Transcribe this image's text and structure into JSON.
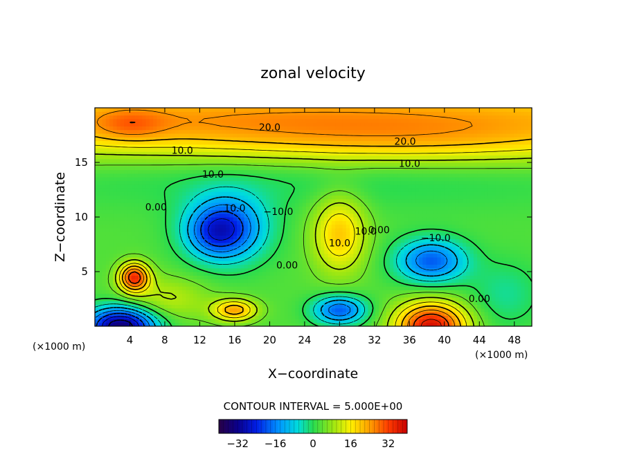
{
  "chart_data": {
    "type": "heatmap",
    "title": "zonal velocity",
    "xlabel": "X−coordinate",
    "ylabel": "Z−coordinate",
    "x_unit": "(×1000 m)",
    "y_unit": "(×1000 m)",
    "xlim": [
      0,
      50
    ],
    "ylim": [
      0,
      20
    ],
    "x_ticks": [
      4,
      8,
      12,
      16,
      20,
      24,
      28,
      32,
      36,
      40,
      44,
      48
    ],
    "y_ticks": [
      5,
      10,
      15
    ],
    "contour_interval_text": "CONTOUR INTERVAL = 5.000E+00",
    "colorbar": {
      "min": -40,
      "max": 40,
      "ticks": [
        -32,
        -16,
        0,
        16,
        32
      ]
    },
    "contour_labels": [
      "20.0",
      "20.0",
      "10.0",
      "10.0",
      "10.0",
      "10.0",
      "10.0",
      "10.0",
      "−10.0",
      "−10.0",
      "0.00",
      "0.00",
      "0.00",
      "0.00"
    ],
    "features": [
      {
        "x": 25,
        "z": 18.8,
        "value": 23,
        "sx": 60,
        "sz": 3.5
      },
      {
        "x": 4,
        "z": 18.5,
        "value": 7,
        "sx": 4,
        "sz": 1.5
      },
      {
        "x": 36,
        "z": 16.5,
        "value": 5,
        "sx": 20,
        "sz": 2
      },
      {
        "x": 25,
        "z": 14,
        "value": -5,
        "sx": 40,
        "sz": 3
      },
      {
        "x": 15,
        "z": 9,
        "value": -25,
        "sx": 4.5,
        "sz": 3
      },
      {
        "x": 13.5,
        "z": 8.5,
        "value": -8,
        "sx": 3,
        "sz": 2
      },
      {
        "x": 38.5,
        "z": 6,
        "value": -22,
        "sx": 4,
        "sz": 2
      },
      {
        "x": 28,
        "z": 8.5,
        "value": 17,
        "sx": 3,
        "sz": 3.5
      },
      {
        "x": 4.5,
        "z": 4.5,
        "value": 30,
        "sx": 1.7,
        "sz": 1.3
      },
      {
        "x": 8,
        "z": 2.5,
        "value": 8,
        "sx": 5,
        "sz": 2
      },
      {
        "x": 3,
        "z": 0,
        "value": -38,
        "sx": 4,
        "sz": 1.8
      },
      {
        "x": 16,
        "z": 1.5,
        "value": 20,
        "sx": 2.5,
        "sz": 1
      },
      {
        "x": 28,
        "z": 1.5,
        "value": -22,
        "sx": 3,
        "sz": 1.3
      },
      {
        "x": 38.5,
        "z": 0,
        "value": 35,
        "sx": 4,
        "sz": 2.2
      },
      {
        "x": 47,
        "z": 3,
        "value": -6,
        "sx": 4,
        "sz": 3
      }
    ]
  }
}
